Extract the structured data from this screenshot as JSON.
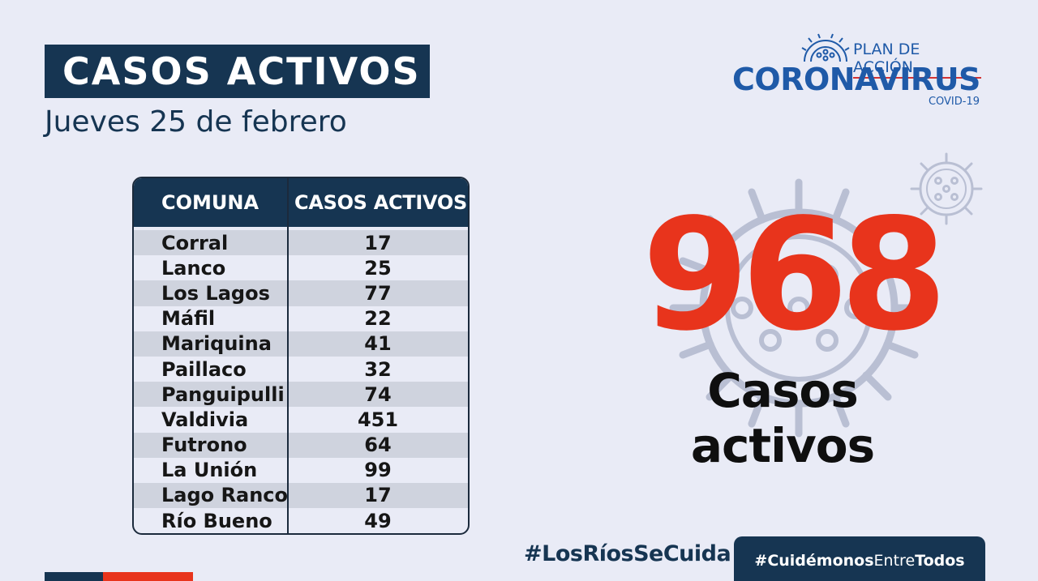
{
  "header": {
    "title": "CASOS ACTIVOS",
    "date": "Jueves 25  de febrero"
  },
  "logo": {
    "plan": "PLAN DE ACCIÓN",
    "name": "CORONAVIRUS",
    "sub": "COVID-19",
    "icon": "coronavirus-icon"
  },
  "table": {
    "headers": [
      "COMUNA",
      "CASOS ACTIVOS"
    ],
    "rows": [
      {
        "comuna": "Corral",
        "casos": "17"
      },
      {
        "comuna": "Lanco",
        "casos": "25"
      },
      {
        "comuna": "Los Lagos",
        "casos": "77"
      },
      {
        "comuna": "Máfil",
        "casos": "22"
      },
      {
        "comuna": "Mariquina",
        "casos": "41"
      },
      {
        "comuna": "Paillaco",
        "casos": "32"
      },
      {
        "comuna": "Panguipulli",
        "casos": "74"
      },
      {
        "comuna": "Valdivia",
        "casos": "451"
      },
      {
        "comuna": "Futrono",
        "casos": "64"
      },
      {
        "comuna": "La Unión",
        "casos": "99"
      },
      {
        "comuna": "Lago Ranco",
        "casos": "17"
      },
      {
        "comuna": "Río Bueno",
        "casos": "49"
      }
    ]
  },
  "total": {
    "number": "968",
    "label": "Casos activos"
  },
  "footer": {
    "hashtag1": "#LosRíosSeCuida",
    "hashtag2_a": "#Cuidémonos",
    "hashtag2_b": "Entre",
    "hashtag2_c": "Todos"
  },
  "colors": {
    "navy": "#163552",
    "red": "#e8341c",
    "background": "#e9ebf6",
    "logo_blue": "#1f5aa8"
  }
}
